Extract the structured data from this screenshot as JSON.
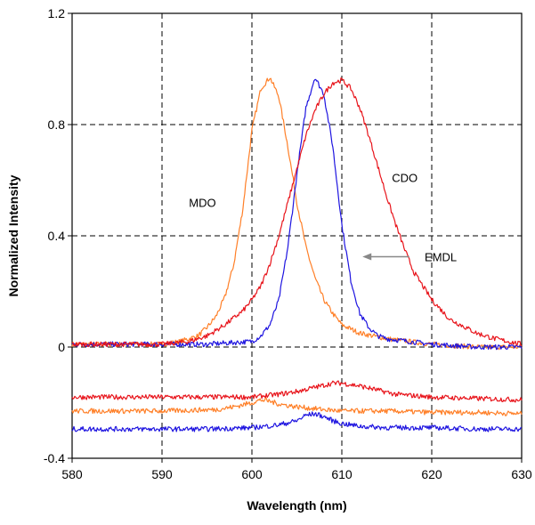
{
  "chart_data": {
    "type": "line",
    "xlabel": "Wavelength (nm)",
    "ylabel": "Normalized Intensity",
    "xlim": [
      580,
      630
    ],
    "ylim": [
      -0.4,
      1.2
    ],
    "xticks": [
      580,
      590,
      600,
      610,
      620,
      630
    ],
    "yticks": [
      -0.4,
      0,
      0.4,
      0.8,
      1.2
    ],
    "ytick_labels": [
      "-0.4",
      "0",
      "0.4",
      "0.8",
      "1.2"
    ],
    "grid": true,
    "colors": {
      "orange": "#ff7f27",
      "red": "#e8141b",
      "blue": "#1e14e0"
    },
    "series": [
      {
        "color": "#ff7f27",
        "x": [
          580,
          590,
          592,
          594,
          595,
          596,
          597,
          598,
          599,
          600,
          601,
          602,
          603,
          604,
          605,
          606,
          607,
          608,
          609,
          610,
          612,
          615,
          620,
          625,
          630
        ],
        "values": [
          0.01,
          0.01,
          0.02,
          0.04,
          0.07,
          0.11,
          0.18,
          0.3,
          0.5,
          0.78,
          0.93,
          0.97,
          0.9,
          0.72,
          0.52,
          0.36,
          0.25,
          0.17,
          0.12,
          0.08,
          0.05,
          0.03,
          0.01,
          0.0,
          0.0
        ]
      },
      {
        "color": "#1e14e0",
        "x": [
          580,
          595,
          600,
          601,
          602,
          603,
          604,
          605,
          606,
          607,
          608,
          609,
          610,
          611,
          612,
          613,
          614,
          615,
          620,
          625,
          630
        ],
        "values": [
          0.01,
          0.01,
          0.02,
          0.04,
          0.08,
          0.17,
          0.36,
          0.62,
          0.86,
          0.97,
          0.91,
          0.72,
          0.44,
          0.24,
          0.12,
          0.07,
          0.04,
          0.03,
          0.01,
          0.0,
          0.0
        ]
      },
      {
        "color": "#e8141b",
        "x": [
          580,
          590,
          593,
          595,
          597,
          599,
          600,
          601,
          602,
          603,
          604,
          605,
          606,
          607,
          608,
          609,
          610,
          611,
          612,
          613,
          614,
          615,
          616,
          617,
          618,
          620,
          622,
          625,
          627,
          630
        ],
        "values": [
          0.01,
          0.01,
          0.02,
          0.04,
          0.08,
          0.13,
          0.17,
          0.22,
          0.3,
          0.4,
          0.52,
          0.64,
          0.76,
          0.85,
          0.91,
          0.95,
          0.96,
          0.93,
          0.86,
          0.76,
          0.65,
          0.54,
          0.44,
          0.35,
          0.27,
          0.17,
          0.1,
          0.05,
          0.03,
          0.01
        ]
      },
      {
        "color": "#e8141b",
        "x": [
          580,
          590,
          595,
          600,
          603,
          605,
          607,
          609,
          610,
          612,
          614,
          616,
          620,
          625,
          630
        ],
        "values": [
          -0.18,
          -0.18,
          -0.18,
          -0.18,
          -0.17,
          -0.16,
          -0.145,
          -0.13,
          -0.13,
          -0.14,
          -0.155,
          -0.17,
          -0.18,
          -0.185,
          -0.19
        ]
      },
      {
        "color": "#ff7f27",
        "x": [
          580,
          590,
          596,
          598,
          600,
          601,
          602,
          603,
          605,
          608,
          610,
          615,
          620,
          625,
          630
        ],
        "values": [
          -0.23,
          -0.23,
          -0.225,
          -0.215,
          -0.2,
          -0.19,
          -0.195,
          -0.205,
          -0.215,
          -0.225,
          -0.23,
          -0.23,
          -0.235,
          -0.235,
          -0.24
        ]
      },
      {
        "color": "#1e14e0",
        "x": [
          580,
          595,
          600,
          603,
          605,
          606,
          607,
          608,
          609,
          610,
          612,
          615,
          620,
          625,
          630
        ],
        "values": [
          -0.295,
          -0.295,
          -0.29,
          -0.28,
          -0.265,
          -0.245,
          -0.24,
          -0.25,
          -0.265,
          -0.275,
          -0.285,
          -0.29,
          -0.29,
          -0.295,
          -0.295
        ]
      }
    ],
    "annotations": [
      {
        "text": "MDO",
        "x": 594.5,
        "y": 0.52
      },
      {
        "text": "CDO",
        "x": 617,
        "y": 0.61
      },
      {
        "text": "EMDL",
        "x": 621,
        "y": 0.325
      }
    ],
    "arrow": {
      "from_x": 617.5,
      "to_x": 612.3,
      "y": 0.325,
      "color": "#888888"
    }
  }
}
